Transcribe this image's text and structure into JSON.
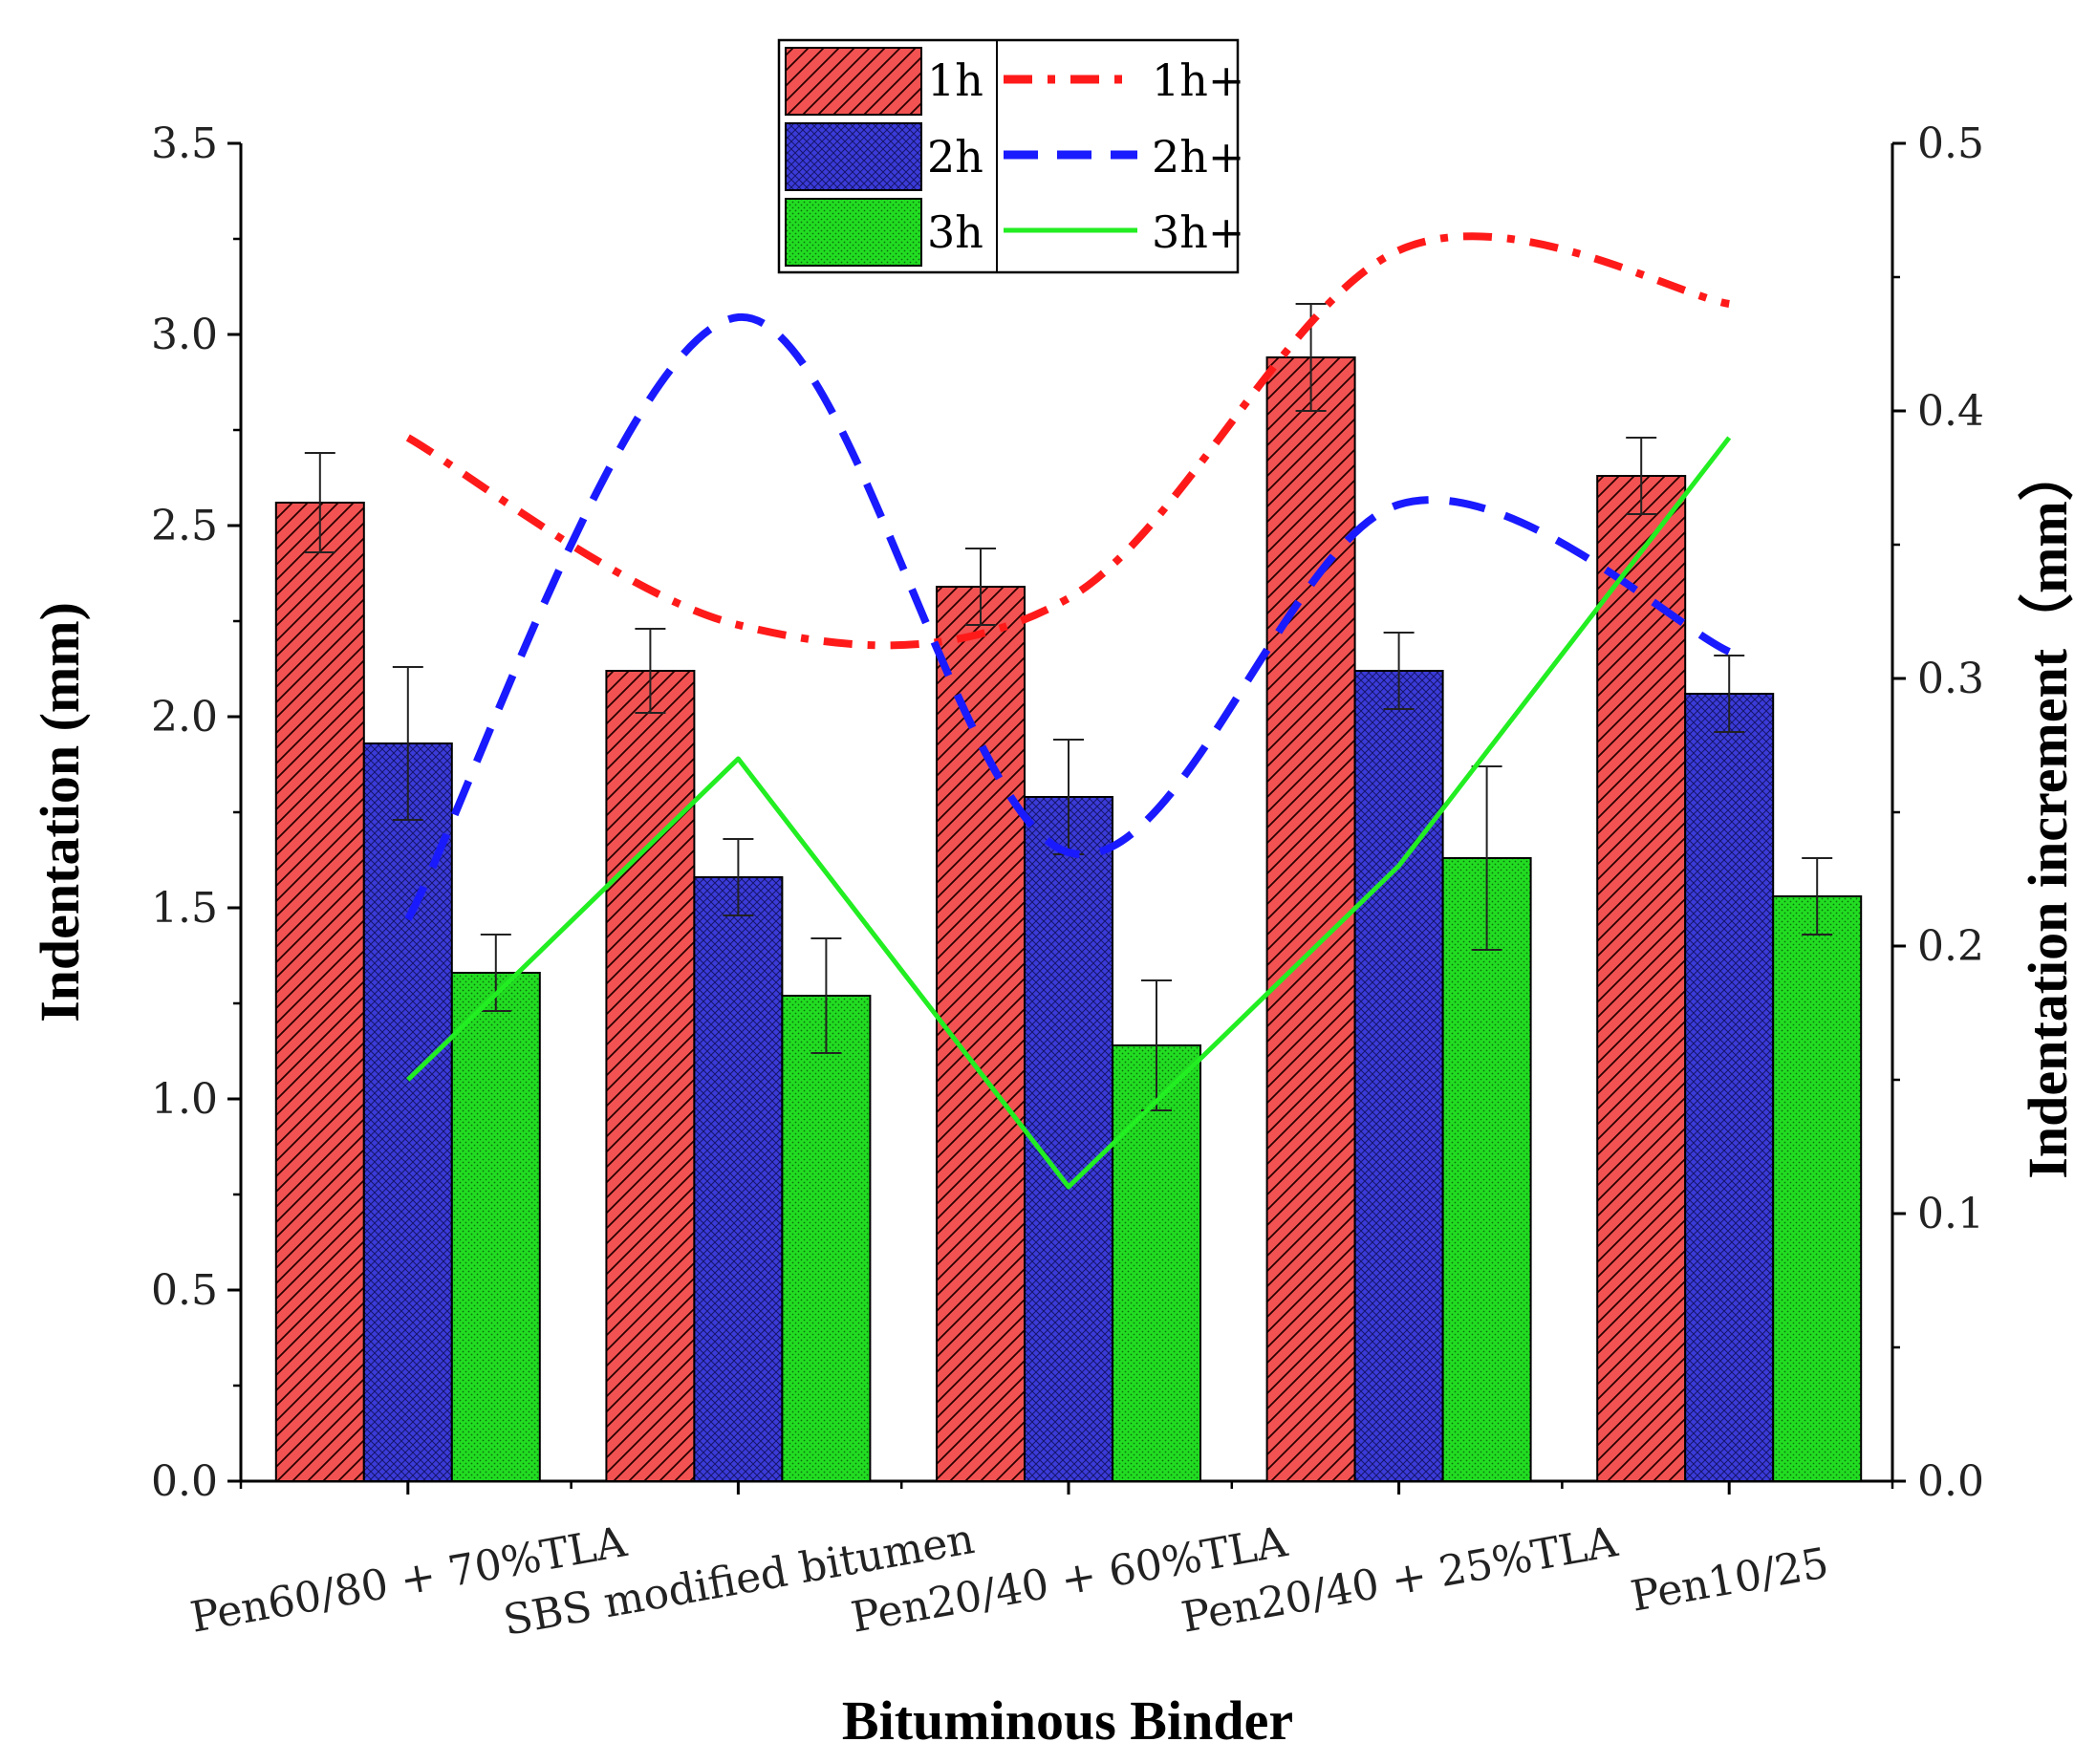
{
  "chart_data": {
    "type": "bar",
    "title": "",
    "xlabel": "Bituminous Binder",
    "ylabel": "Indentation (mm)",
    "y2label": "Indentation  increment（mm）",
    "ylim": [
      0,
      3.5
    ],
    "y2lim": [
      0,
      0.5
    ],
    "yticks": [
      "0.0",
      "0.5",
      "1.0",
      "1.5",
      "2.0",
      "2.5",
      "3.0",
      "3.5"
    ],
    "y2ticks": [
      "0.0",
      "0.1",
      "0.2",
      "0.3",
      "0.4",
      "0.5"
    ],
    "grid": false,
    "legend_position": "top-center",
    "categories": [
      "Pen60/80 + 70%TLA",
      "SBS modified bitumen",
      "Pen20/40 + 60%TLA",
      "Pen20/40 + 25%TLA",
      "Pen10/25"
    ],
    "bar_series": [
      {
        "name": "1h",
        "color": "#f25252",
        "pattern": "diagonal-hatch",
        "values": [
          2.56,
          2.12,
          2.34,
          2.94,
          2.63
        ],
        "errors": [
          0.13,
          0.11,
          0.1,
          0.14,
          0.1
        ]
      },
      {
        "name": "2h",
        "color": "#3b3bd9",
        "pattern": "crosshatch",
        "values": [
          1.93,
          1.58,
          1.79,
          2.12,
          2.06
        ],
        "errors": [
          0.2,
          0.1,
          0.15,
          0.1,
          0.1
        ]
      },
      {
        "name": "3h",
        "color": "#22dd22",
        "pattern": "dots",
        "values": [
          1.33,
          1.27,
          1.14,
          1.63,
          1.53
        ],
        "errors": [
          0.1,
          0.15,
          0.17,
          0.24,
          0.1
        ]
      }
    ],
    "line_series": [
      {
        "name": "1h+",
        "color": "#ff1a1a",
        "style": "dash-dot",
        "axis": "right",
        "values": [
          0.39,
          0.32,
          0.33,
          0.46,
          0.44
        ]
      },
      {
        "name": "2h+",
        "color": "#1a1aff",
        "style": "dash",
        "axis": "right",
        "values": [
          0.21,
          0.435,
          0.235,
          0.365,
          0.31
        ]
      },
      {
        "name": "3h+",
        "color": "#22ee22",
        "style": "solid",
        "axis": "right",
        "values": [
          0.15,
          0.27,
          0.11,
          0.23,
          0.39
        ]
      }
    ]
  }
}
